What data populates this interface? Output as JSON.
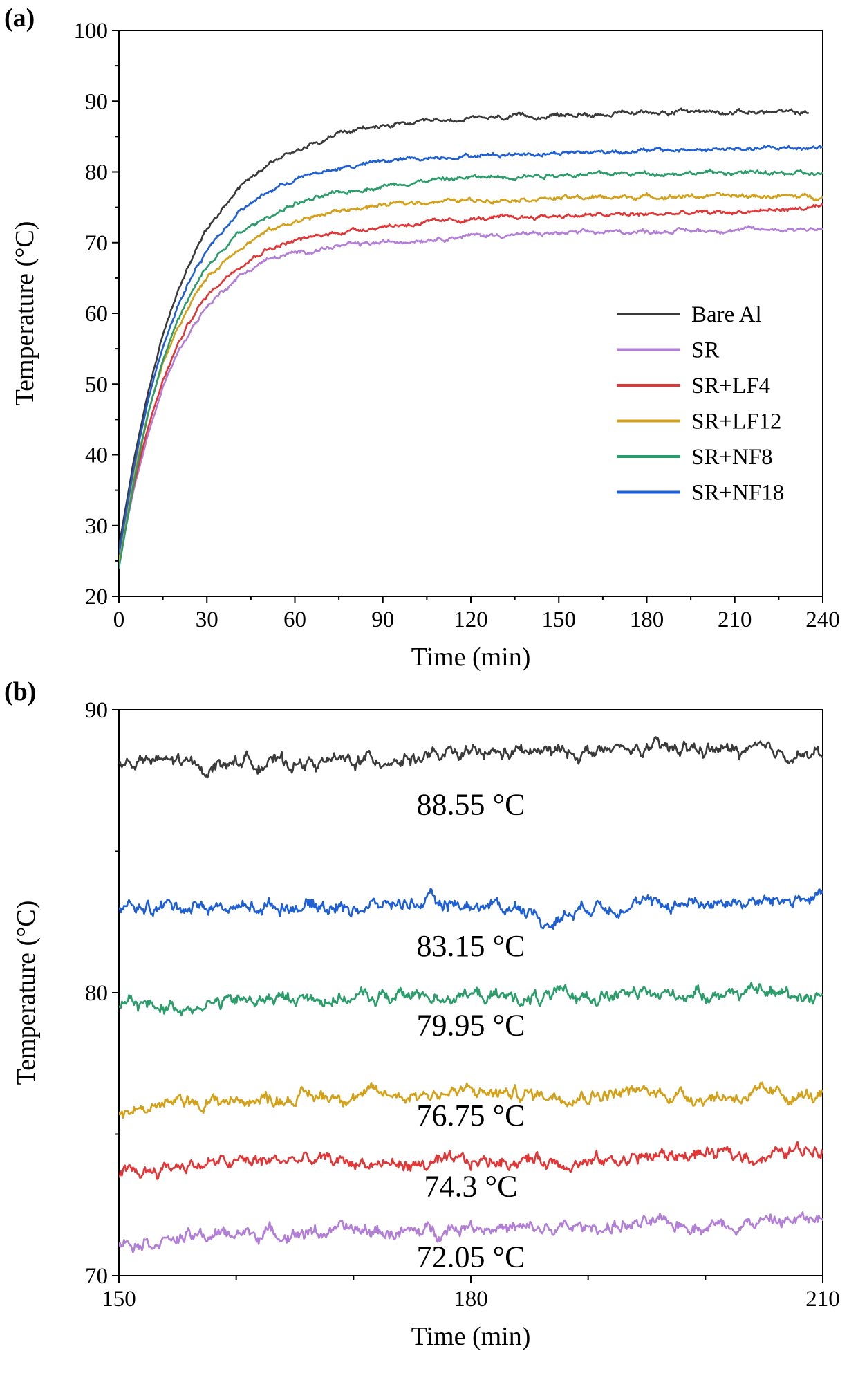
{
  "chart_data": [
    {
      "panel": "(a)",
      "type": "line",
      "xlabel": "Time (min)",
      "ylabel": "Temperature (°C)",
      "xlim": [
        0,
        240
      ],
      "ylim": [
        20,
        100
      ],
      "xticks": [
        0,
        30,
        60,
        90,
        120,
        150,
        180,
        210,
        240
      ],
      "yticks": [
        20,
        30,
        40,
        50,
        60,
        70,
        80,
        90,
        100
      ],
      "legend_position": "center-right",
      "series": [
        {
          "name": "Bare Al",
          "color": "#3a3a3a",
          "x": [
            0,
            5,
            10,
            15,
            20,
            25,
            30,
            40,
            50,
            60,
            75,
            90,
            105,
            120,
            150,
            180,
            195,
            210,
            235
          ],
          "y": [
            27,
            39,
            49,
            57,
            63,
            68,
            72,
            77.5,
            81,
            83,
            85.5,
            86.5,
            87,
            87.5,
            88,
            88.4,
            88.6,
            88.5,
            88.4
          ]
        },
        {
          "name": "SR",
          "color": "#b27ed8",
          "x": [
            0,
            5,
            10,
            15,
            20,
            25,
            30,
            40,
            50,
            60,
            75,
            90,
            105,
            120,
            150,
            180,
            210,
            240
          ],
          "y": [
            25,
            35,
            43,
            49.5,
            54.5,
            58,
            61,
            65,
            67.5,
            68.5,
            69.5,
            70,
            70.5,
            71,
            71.3,
            71.6,
            71.8,
            72
          ]
        },
        {
          "name": "SR+LF4",
          "color": "#e33535",
          "x": [
            0,
            5,
            10,
            15,
            20,
            25,
            30,
            40,
            50,
            60,
            75,
            90,
            105,
            120,
            150,
            180,
            210,
            240
          ],
          "y": [
            25,
            35.5,
            44,
            50.5,
            55.5,
            59.5,
            62.5,
            66.5,
            69,
            70.3,
            71.5,
            72.3,
            72.8,
            73.3,
            73.8,
            74,
            74.3,
            75
          ]
        },
        {
          "name": "SR+LF12",
          "color": "#d4a017",
          "x": [
            0,
            5,
            10,
            15,
            20,
            25,
            30,
            40,
            50,
            60,
            75,
            90,
            105,
            120,
            150,
            180,
            210,
            240
          ],
          "y": [
            25,
            37,
            46,
            53,
            58,
            62,
            65,
            69,
            71.5,
            73,
            74.5,
            75.3,
            75.8,
            76,
            76.3,
            76.5,
            76.6,
            76.5
          ]
        },
        {
          "name": "SR+NF8",
          "color": "#2a9d6a",
          "x": [
            0,
            5,
            10,
            15,
            20,
            25,
            30,
            40,
            50,
            60,
            75,
            90,
            105,
            120,
            150,
            180,
            210,
            240
          ],
          "y": [
            24,
            36,
            46,
            53.5,
            59,
            63,
            66.5,
            71,
            73.5,
            75.5,
            77,
            78,
            78.8,
            79.2,
            79.6,
            79.8,
            79.9,
            79.7
          ]
        },
        {
          "name": "SR+NF18",
          "color": "#1f5fd6",
          "x": [
            0,
            5,
            10,
            15,
            20,
            25,
            30,
            40,
            50,
            60,
            75,
            90,
            105,
            120,
            150,
            180,
            210,
            240
          ],
          "y": [
            26,
            38,
            48,
            55.5,
            61,
            65.5,
            69,
            74,
            77,
            79,
            80.5,
            81.5,
            82,
            82.3,
            82.7,
            83,
            83.2,
            83.5
          ]
        }
      ]
    },
    {
      "panel": "(b)",
      "type": "line",
      "xlabel": "Time (min)",
      "ylabel": "Temperature (°C)",
      "xlim": [
        150,
        210
      ],
      "ylim": [
        70,
        90
      ],
      "xticks": [
        150,
        180,
        210
      ],
      "yticks": [
        70,
        80,
        90
      ],
      "series": [
        {
          "color": "#3a3a3a",
          "mean": 88.3,
          "x": [
            150,
            155,
            157,
            160,
            165,
            170,
            175,
            180,
            185,
            190,
            195,
            200,
            205,
            210
          ],
          "y": [
            88.1,
            88.2,
            87.9,
            88.2,
            88.1,
            88.2,
            88.3,
            88.4,
            88.5,
            88.5,
            88.6,
            88.6,
            88.5,
            88.4
          ],
          "annotation": "88.55 °C",
          "annot_x": 180,
          "annot_y": 86.3
        },
        {
          "color": "#1f5fd6",
          "mean": 83.0,
          "x": [
            150,
            155,
            160,
            165,
            170,
            175,
            180,
            185,
            186,
            190,
            195,
            200,
            205,
            210
          ],
          "y": [
            82.9,
            83.1,
            83.0,
            83.1,
            83.0,
            83.2,
            83.1,
            83.0,
            82.4,
            83.1,
            83.1,
            83.2,
            83.2,
            83.4
          ],
          "annotation": "83.15 °C",
          "annot_x": 180,
          "annot_y": 81.3
        },
        {
          "color": "#2a9d6a",
          "mean": 79.8,
          "x": [
            150,
            155,
            160,
            165,
            170,
            175,
            180,
            185,
            190,
            195,
            200,
            205,
            210
          ],
          "y": [
            79.6,
            79.5,
            79.7,
            79.8,
            79.8,
            79.9,
            79.9,
            79.8,
            79.9,
            79.9,
            80.0,
            80.0,
            79.9
          ],
          "annotation": "79.95 °C",
          "annot_x": 180,
          "annot_y": 78.5
        },
        {
          "color": "#d4a017",
          "mean": 76.3,
          "x": [
            150,
            155,
            160,
            165,
            170,
            175,
            180,
            185,
            190,
            195,
            200,
            205,
            210
          ],
          "y": [
            75.8,
            76.1,
            76.2,
            76.3,
            76.4,
            76.4,
            76.5,
            76.4,
            76.4,
            76.5,
            76.3,
            76.4,
            76.3
          ],
          "annotation": "76.75 °C",
          "annot_x": 180,
          "annot_y": 75.3
        },
        {
          "color": "#e33535",
          "mean": 74.0,
          "x": [
            150,
            155,
            160,
            165,
            170,
            175,
            180,
            185,
            190,
            195,
            200,
            205,
            210
          ],
          "y": [
            73.5,
            73.9,
            74.0,
            74.1,
            74.0,
            73.9,
            74.0,
            74.1,
            74.0,
            74.2,
            74.3,
            74.2,
            74.6
          ],
          "annotation": "74.3 °C",
          "annot_x": 180,
          "annot_y": 72.8
        },
        {
          "color": "#b27ed8",
          "mean": 71.5,
          "x": [
            150,
            155,
            160,
            165,
            170,
            175,
            180,
            185,
            190,
            195,
            200,
            205,
            210
          ],
          "y": [
            71.2,
            71.3,
            71.5,
            71.5,
            71.6,
            71.5,
            71.8,
            71.6,
            71.7,
            71.8,
            71.8,
            71.9,
            72.0
          ],
          "annotation": "72.05 °C",
          "annot_x": 180,
          "annot_y": 70.3
        }
      ]
    }
  ]
}
